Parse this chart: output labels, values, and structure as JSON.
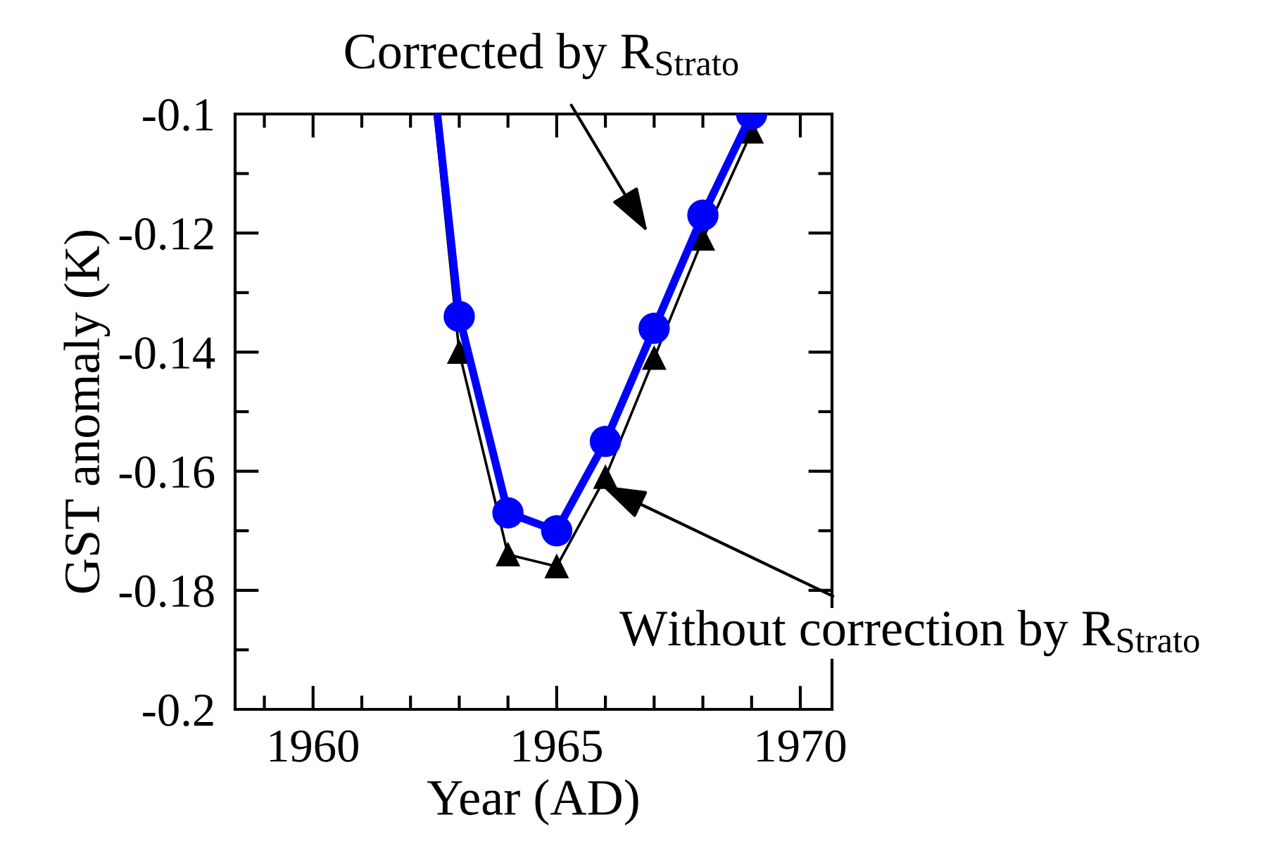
{
  "chart_data": {
    "type": "line",
    "xlabel": "Year (AD)",
    "ylabel": "GST anomaly (K)",
    "xlim": [
      1958.4,
      1970.65
    ],
    "xticks": [
      1960,
      1965,
      1970
    ],
    "ylim": [
      -0.2,
      -0.1
    ],
    "yticks": [
      -0.2,
      -0.18,
      -0.16,
      -0.14,
      -0.12,
      -0.1
    ],
    "grid": false,
    "legend": false,
    "series": [
      {
        "color": "#000000",
        "x": [
          1962.5,
          1963
        ],
        "values": [
          -0.1,
          -0.14
        ]
      },
      {
        "color": "#000000",
        "marker": "triangle",
        "x": [
          1963,
          1964,
          1965,
          1966,
          1967,
          1968,
          1969
        ],
        "values": [
          -0.14,
          -0.174,
          -0.176,
          -0.161,
          -0.141,
          -0.121,
          -0.103
        ]
      },
      {
        "color": "#0000ff",
        "x": [
          1962.55,
          1963
        ],
        "values": [
          -0.1,
          -0.134
        ]
      },
      {
        "color": "#0000ff",
        "marker": "circle",
        "x": [
          1963,
          1964,
          1965,
          1966,
          1967,
          1968,
          1969
        ],
        "values": [
          -0.134,
          -0.167,
          -0.17,
          -0.155,
          -0.136,
          -0.117,
          -0.1
        ]
      }
    ],
    "annotations": [
      "Corrected by R$_{Strato}$",
      {
        "text": "Without correction by R$_{Strato}$",
        "x": 1965.92,
        "y": -0.1624
      }
    ]
  }
}
